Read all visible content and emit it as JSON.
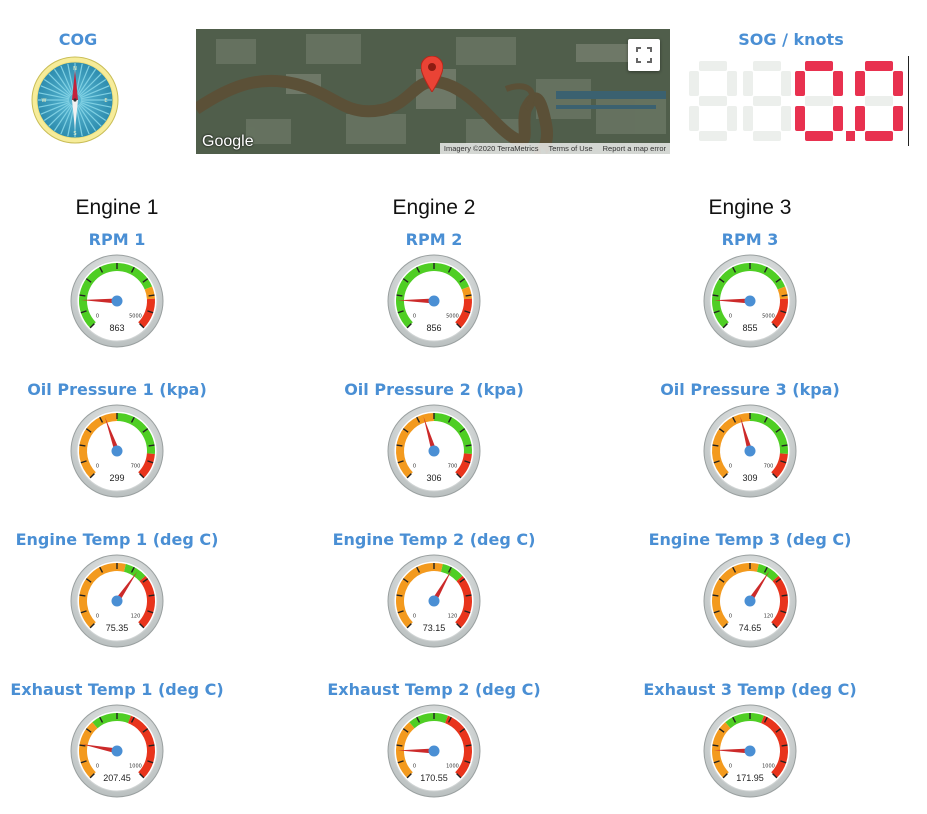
{
  "cog": {
    "label": "COG",
    "letters": {
      "n": "N",
      "e": "E",
      "s": "S",
      "w": "W"
    }
  },
  "map": {
    "logo": "Google",
    "attrib_imagery": "Imagery ©2020 TerraMetrics",
    "attrib_terms": "Terms of Use",
    "attrib_report": "Report a map error",
    "fullscreen_icon": "fullscreen-icon",
    "marker_icon": "map-marker-icon"
  },
  "sog": {
    "label": "SOG / knots",
    "display": "88",
    "value": "0.0",
    "color": "#e8314f",
    "ghost": "#ecefec"
  },
  "engines": [
    {
      "title": "Engine 1",
      "gauges": [
        {
          "label": "RPM 1",
          "value": 863,
          "value_text": "863",
          "min": 0,
          "max": 5000,
          "min_text": "0",
          "max_text": "5000",
          "type": "rpm"
        },
        {
          "label": "Oil Pressure 1 (kpa)",
          "value": 299,
          "value_text": "299",
          "min": 0,
          "max": 700,
          "min_text": "0",
          "max_text": "700",
          "type": "oil"
        },
        {
          "label": "Engine Temp 1 (deg C)",
          "value": 75.35,
          "value_text": "75.35",
          "min": 0,
          "max": 120,
          "min_text": "0",
          "max_text": "120",
          "type": "temp"
        },
        {
          "label": "Exhaust Temp 1 (deg C)",
          "value": 207.45,
          "value_text": "207.45",
          "min": 0,
          "max": 1000,
          "min_text": "0",
          "max_text": "1000",
          "type": "exhaust"
        }
      ]
    },
    {
      "title": "Engine 2",
      "gauges": [
        {
          "label": "RPM 2",
          "value": 856,
          "value_text": "856",
          "min": 0,
          "max": 5000,
          "min_text": "0",
          "max_text": "5000",
          "type": "rpm"
        },
        {
          "label": "Oil Pressure 2 (kpa)",
          "value": 306,
          "value_text": "306",
          "min": 0,
          "max": 700,
          "min_text": "0",
          "max_text": "700",
          "type": "oil"
        },
        {
          "label": "Engine Temp 2 (deg C)",
          "value": 73.15,
          "value_text": "73.15",
          "min": 0,
          "max": 120,
          "min_text": "0",
          "max_text": "120",
          "type": "temp"
        },
        {
          "label": "Exhaust Temp 2 (deg C)",
          "value": 170.55,
          "value_text": "170.55",
          "min": 0,
          "max": 1000,
          "min_text": "0",
          "max_text": "1000",
          "type": "exhaust"
        }
      ]
    },
    {
      "title": "Engine 3",
      "gauges": [
        {
          "label": "RPM 3",
          "value": 855,
          "value_text": "855",
          "min": 0,
          "max": 5000,
          "min_text": "0",
          "max_text": "5000",
          "type": "rpm"
        },
        {
          "label": "Oil Pressure 3 (kpa)",
          "value": 309,
          "value_text": "309",
          "min": 0,
          "max": 700,
          "min_text": "0",
          "max_text": "700",
          "type": "oil"
        },
        {
          "label": "Engine Temp 3 (deg C)",
          "value": 74.65,
          "value_text": "74.65",
          "min": 0,
          "max": 120,
          "min_text": "0",
          "max_text": "120",
          "type": "temp"
        },
        {
          "label": "Exhaust 3 Temp (deg C)",
          "value": 171.95,
          "value_text": "171.95",
          "min": 0,
          "max": 1000,
          "min_text": "0",
          "max_text": "1000",
          "type": "exhaust"
        }
      ]
    }
  ],
  "colors": {
    "label_blue": "#4a8fd4",
    "green": "#4fce24",
    "orange": "#f39a1e",
    "red": "#e8341c",
    "needle": "#cc2a2a",
    "hub": "#4a8fd4"
  }
}
